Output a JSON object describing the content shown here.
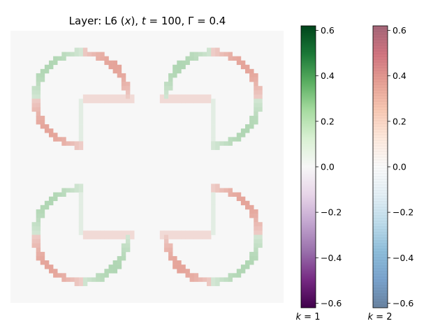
{
  "chart_data": {
    "type": "heatmap",
    "title": "Layer: L6 (x), t = 100, Γ = 0.4",
    "title_parts": {
      "layer": "L6",
      "var": "x",
      "t": "100",
      "gamma": "0.4"
    },
    "description": "Four pac-man shaped (three-quarter circle) contours with inward L-shaped notches, arranged in a 2x2 grid; values near 0 except along outlines (green k=1 positive, red k=2 positive).",
    "pixel_grid": [
      64,
      64
    ],
    "background_value": 0.0,
    "colorbars": [
      {
        "label": "k = 1",
        "label_parts": {
          "var": "k",
          "value": "1"
        },
        "colormap": "PRGn",
        "vmin": -0.62,
        "vmax": 0.62,
        "ticks": [
          0.6,
          0.4,
          0.2,
          0.0,
          -0.2,
          -0.4,
          -0.6
        ],
        "tick_labels": [
          "0.6",
          "0.4",
          "0.2",
          "0.0",
          "−0.2",
          "−0.4",
          "−0.6"
        ]
      },
      {
        "label": "k = 2",
        "label_parts": {
          "var": "k",
          "value": "2"
        },
        "colormap": "RdBu_r",
        "vmin": -0.62,
        "vmax": 0.62,
        "ticks": [
          0.6,
          0.4,
          0.2,
          0.0,
          -0.2,
          -0.4,
          -0.6
        ],
        "tick_labels": [
          "0.6",
          "0.4",
          "0.2",
          "0.0",
          "−0.2",
          "−0.4",
          "−0.6"
        ]
      }
    ],
    "shapes": [
      {
        "quadrant": "top-left",
        "missing_quarter": "bottom-right",
        "k1_peak": 0.22,
        "k2_peak": 0.25
      },
      {
        "quadrant": "top-right",
        "missing_quarter": "bottom-left",
        "k1_peak": 0.22,
        "k2_peak": 0.25
      },
      {
        "quadrant": "bottom-left",
        "missing_quarter": "top-right",
        "k1_peak": 0.22,
        "k2_peak": 0.25
      },
      {
        "quadrant": "bottom-right",
        "missing_quarter": "top-left",
        "k1_peak": 0.22,
        "k2_peak": 0.25
      }
    ]
  }
}
